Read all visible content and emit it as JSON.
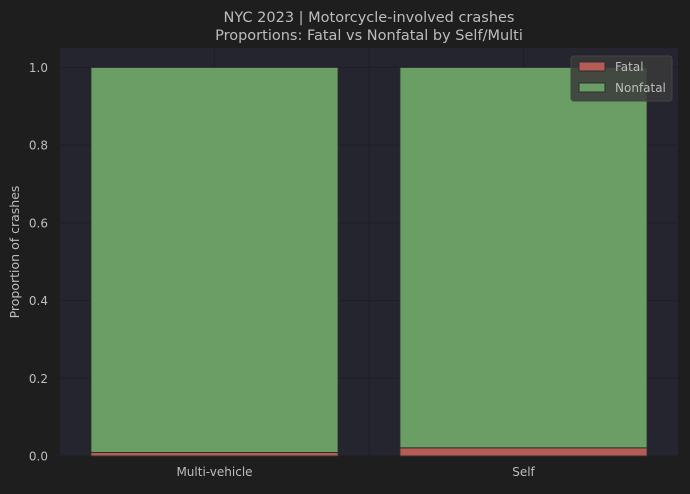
{
  "chart_data": {
    "type": "bar",
    "stacked": true,
    "title": "NYC 2023 | Motorcycle-involved crashes",
    "subtitle": "Proportions: Fatal vs Nonfatal by Self/Multi",
    "xlabel": "",
    "ylabel": "Proportion of crashes",
    "ylim": [
      0,
      1.05
    ],
    "yticks": [
      0.0,
      0.2,
      0.4,
      0.6,
      0.8,
      1.0
    ],
    "ytick_labels": [
      "0.0",
      "0.2",
      "0.4",
      "0.6",
      "0.8",
      "1.0"
    ],
    "grid": true,
    "legend_position": "top-right",
    "categories": [
      "Multi-vehicle",
      "Self"
    ],
    "series": [
      {
        "name": "Fatal",
        "color": "#b55d55",
        "values": [
          0.009,
          0.021
        ]
      },
      {
        "name": "Nonfatal",
        "color": "#6a9e65",
        "values": [
          0.991,
          0.979
        ]
      }
    ],
    "colors": {
      "background": "#1e1e1e",
      "plot_background": "#25252f",
      "grid": "#1f1f26",
      "text": "#bdbdbd",
      "bar_edge": "#2e2e2e"
    }
  }
}
